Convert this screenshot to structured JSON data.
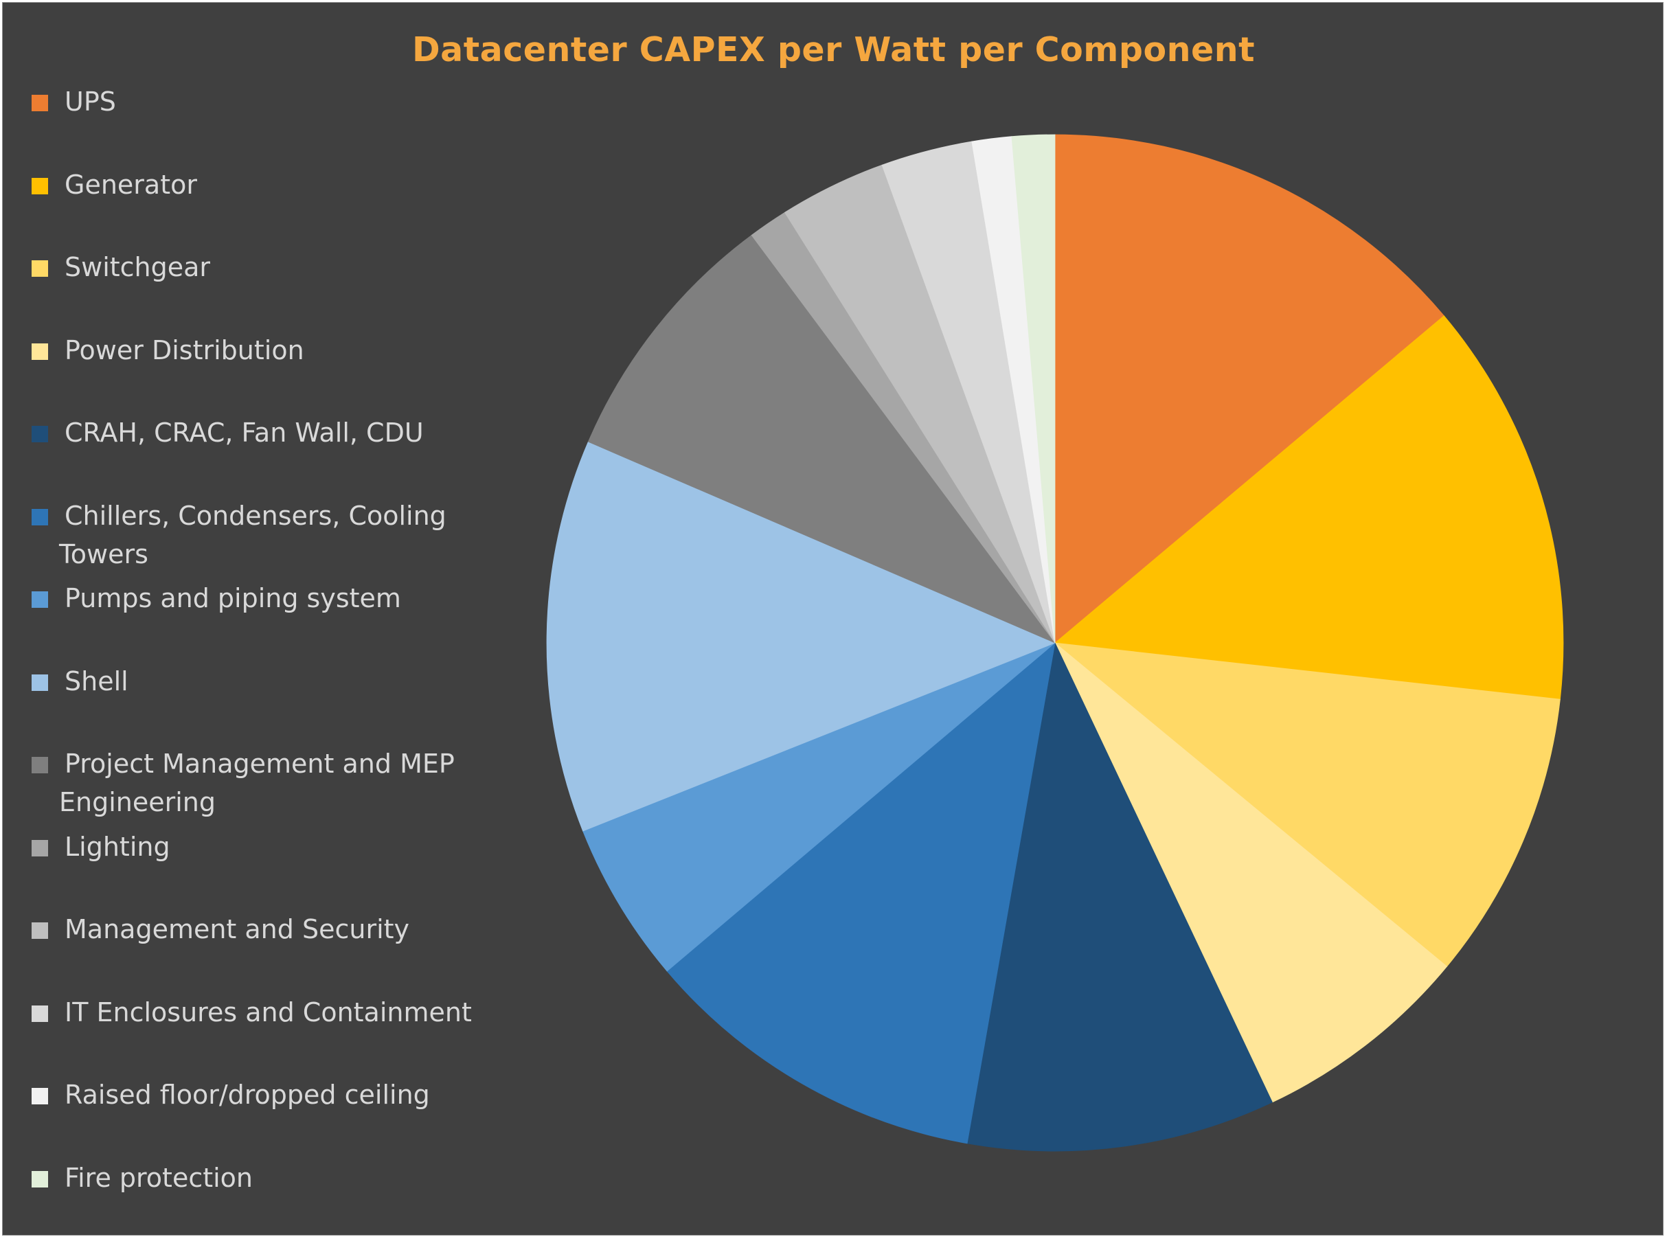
{
  "chart_data": {
    "type": "pie",
    "title": "Datacenter CAPEX per Watt per Component",
    "legend_position": "left",
    "start_angle": "12 o'clock, clockwise",
    "categories": [
      "UPS",
      "Generator",
      "Switchgear",
      "Power Distribution",
      "CRAH, CRAC, Fan Wall, CDU",
      "Chillers, Condensers, Cooling Towers",
      "Pumps and piping system",
      "Shell",
      "Project Management and MEP Engineering",
      "Lighting",
      "Management and Security",
      "IT Enclosures and Containment",
      "Raised floor/dropped ceiling",
      "Fire protection"
    ],
    "values": [
      14.3,
      13.3,
      9.5,
      7.2,
      10.1,
      11.4,
      5.3,
      12.9,
      8.6,
      1.3,
      3.5,
      3.0,
      1.3,
      1.4
    ],
    "colors": [
      "#ed7d31",
      "#ffc000",
      "#ffd966",
      "#ffe699",
      "#1f4e79",
      "#2e75b6",
      "#5b9bd5",
      "#9dc3e6",
      "#7f7f7f",
      "#a6a6a6",
      "#bfbfbf",
      "#d9d9d9",
      "#f2f2f2",
      "#e2efda"
    ],
    "legend_labels": [
      "UPS",
      "Generator",
      "Switchgear",
      "Power Distribution",
      "CRAH, CRAC, Fan Wall, CDU",
      "Chillers, Condensers, Cooling\nTowers",
      "Pumps and piping system",
      "Shell",
      "Project Management and MEP\nEngineering",
      "Lighting",
      "Management and Security",
      "IT Enclosures and Containment",
      "Raised floor/dropped ceiling",
      "Fire protection"
    ]
  },
  "style": {
    "background": "#404040",
    "title_color": "#f5a73f",
    "legend_text_color": "#d9d9d9"
  }
}
